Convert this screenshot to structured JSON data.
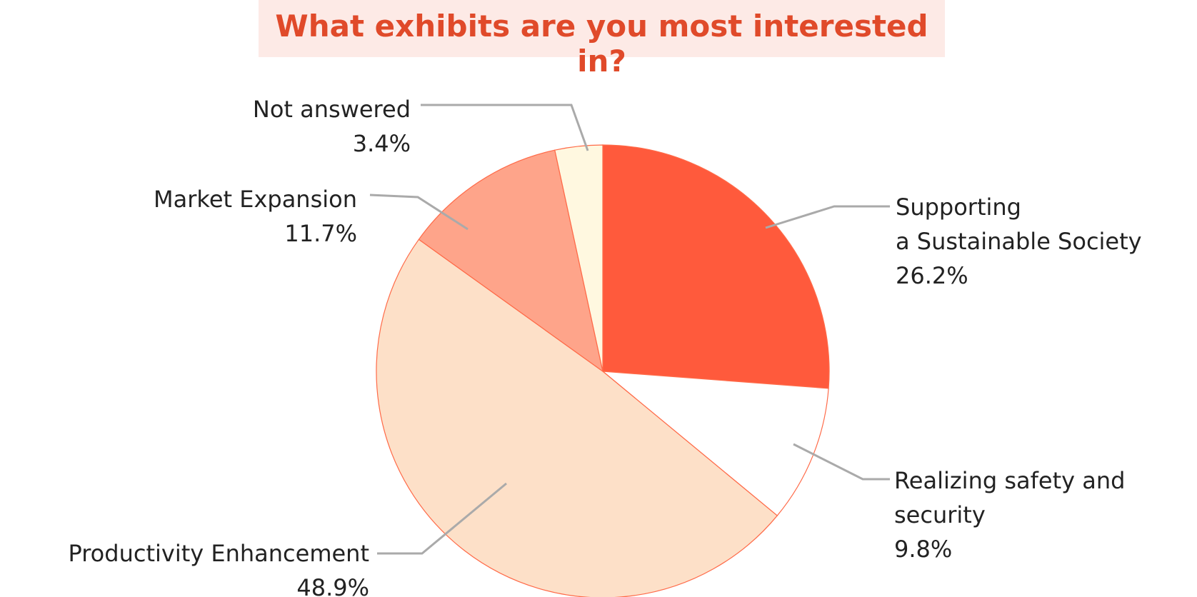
{
  "chart_data": {
    "type": "pie",
    "title": "What exhibits are you most interested in?",
    "categories": [
      "Supporting\na Sustainable Society",
      "Realizing safety and\nsecurity",
      "Productivity Enhancement",
      "Market Expansion",
      "Not answered"
    ],
    "values": [
      26.2,
      9.8,
      48.9,
      11.7,
      3.4
    ],
    "value_labels": [
      "26.2%",
      "9.8%",
      "48.9%",
      "11.7%",
      "3.4%"
    ],
    "colors": [
      "#ff5a3c",
      "#ffffff",
      "#fde0c8",
      "#fea48a",
      "#fff8e0"
    ]
  }
}
